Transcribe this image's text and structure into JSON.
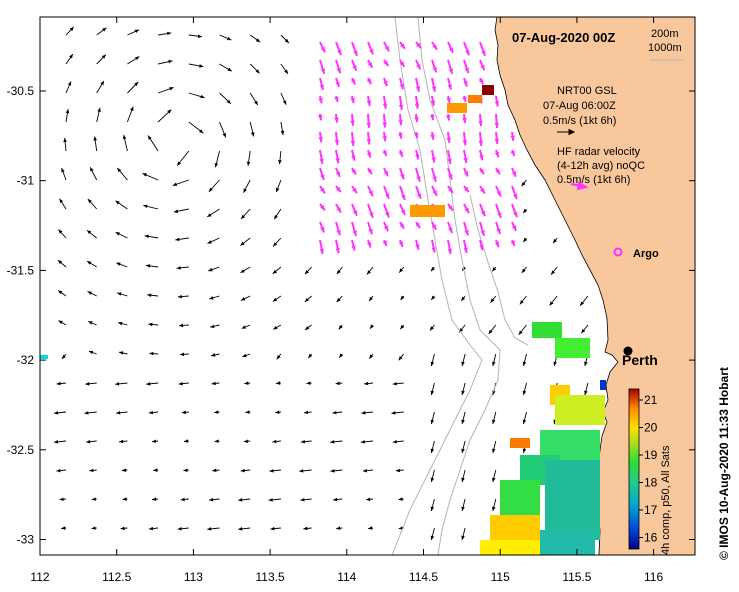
{
  "title": "07-Aug-2020 00Z",
  "depth_contours": [
    "200m",
    "1000m"
  ],
  "legend_gsl": {
    "line1": "NRT00 GSL",
    "line2": "07-Aug 06:00Z",
    "line3": "0.5m/s (1kt 6h)"
  },
  "legend_hf": {
    "line1": "HF radar velocity",
    "line2": "(4-12h avg) noQC",
    "line3": "0.5m/s (1kt 6h)"
  },
  "argo_label": "Argo",
  "city_label": "Perth",
  "colorbar": {
    "label": "4h comp, p50, All Sats",
    "ticks": [
      "21",
      "20",
      "19",
      "18",
      "17",
      "16"
    ]
  },
  "credit": "© IMOS 10-Aug-2020 11:33 Hobart",
  "axes": {
    "x_ticks": [
      "112",
      "112.5",
      "113",
      "113.5",
      "114",
      "114.5",
      "115",
      "115.5",
      "116"
    ],
    "y_ticks": [
      "-30.5",
      "-31",
      "-31.5",
      "-32",
      "-32.5",
      "-33"
    ]
  },
  "colors": {
    "land": "#f9c79c",
    "argo": "#ff33ff",
    "hf_arrows": "#ff33ff",
    "gsl_arrows": "#000000",
    "contours": "#b4b4b4"
  }
}
